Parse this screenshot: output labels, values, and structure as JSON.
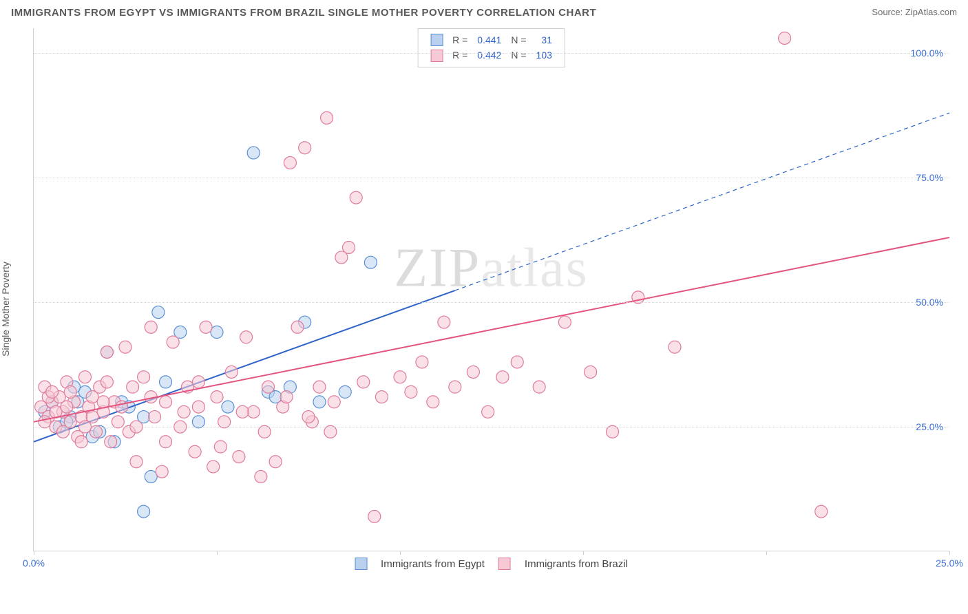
{
  "header": {
    "title": "IMMIGRANTS FROM EGYPT VS IMMIGRANTS FROM BRAZIL SINGLE MOTHER POVERTY CORRELATION CHART",
    "source_label": "Source:",
    "source_name": "ZipAtlas.com"
  },
  "chart": {
    "type": "scatter",
    "ylabel": "Single Mother Poverty",
    "watermark": "ZIPatlas",
    "background_color": "#ffffff",
    "grid_color": "#d8d8d8",
    "axis_color": "#cfcfcf",
    "xlim": [
      0,
      25
    ],
    "ylim": [
      0,
      105
    ],
    "xticks": [
      0,
      5,
      10,
      15,
      20,
      25
    ],
    "xtick_labels": [
      "0.0%",
      "",
      "",
      "",
      "",
      "25.0%"
    ],
    "yticks": [
      25,
      50,
      75,
      100
    ],
    "ytick_labels": [
      "25.0%",
      "50.0%",
      "75.0%",
      "100.0%"
    ],
    "ytick_color": "#3b6fd4",
    "xtick_color": "#3b6fd4",
    "marker_radius": 9,
    "marker_opacity": 0.55,
    "series": [
      {
        "name": "Immigrants from Egypt",
        "color_fill": "#b9d1ee",
        "color_stroke": "#5a8fd6",
        "R": "0.441",
        "N": "31",
        "trend": {
          "x1": 0,
          "y1": 22,
          "x2": 25,
          "y2": 88,
          "solid_until_x": 11.5,
          "stroke": "#2e64c9",
          "width": 2
        },
        "points": [
          [
            0.3,
            28
          ],
          [
            0.5,
            30
          ],
          [
            0.7,
            25
          ],
          [
            1.0,
            27
          ],
          [
            1.2,
            30
          ],
          [
            1.4,
            32
          ],
          [
            1.6,
            23
          ],
          [
            1.8,
            24
          ],
          [
            2.0,
            40
          ],
          [
            2.2,
            22
          ],
          [
            2.4,
            30
          ],
          [
            2.6,
            29
          ],
          [
            3.0,
            8
          ],
          [
            3.2,
            15
          ],
          [
            3.4,
            48
          ],
          [
            3.6,
            34
          ],
          [
            4.0,
            44
          ],
          [
            4.5,
            26
          ],
          [
            5.0,
            44
          ],
          [
            5.3,
            29
          ],
          [
            6.0,
            80
          ],
          [
            6.4,
            32
          ],
          [
            6.6,
            31
          ],
          [
            7.0,
            33
          ],
          [
            7.4,
            46
          ],
          [
            7.8,
            30
          ],
          [
            8.5,
            32
          ],
          [
            9.2,
            58
          ],
          [
            3.0,
            27
          ],
          [
            1.1,
            33
          ],
          [
            0.9,
            26
          ]
        ]
      },
      {
        "name": "Immigrants from Brazil",
        "color_fill": "#f6c9d4",
        "color_stroke": "#e07a9a",
        "R": "0.442",
        "N": "103",
        "trend": {
          "x1": 0,
          "y1": 26,
          "x2": 25,
          "y2": 63,
          "stroke": "#e3547e",
          "width": 2
        },
        "points": [
          [
            0.2,
            29
          ],
          [
            0.3,
            33
          ],
          [
            0.4,
            27
          ],
          [
            0.5,
            30
          ],
          [
            0.6,
            25
          ],
          [
            0.7,
            31
          ],
          [
            0.8,
            28
          ],
          [
            0.9,
            34
          ],
          [
            1.0,
            26
          ],
          [
            1.1,
            30
          ],
          [
            1.2,
            23
          ],
          [
            1.3,
            27
          ],
          [
            1.4,
            35
          ],
          [
            1.5,
            29
          ],
          [
            1.6,
            31
          ],
          [
            1.7,
            24
          ],
          [
            1.8,
            33
          ],
          [
            1.9,
            28
          ],
          [
            2.0,
            40
          ],
          [
            2.1,
            22
          ],
          [
            2.2,
            30
          ],
          [
            2.3,
            26
          ],
          [
            2.5,
            41
          ],
          [
            2.6,
            24
          ],
          [
            2.7,
            33
          ],
          [
            2.8,
            18
          ],
          [
            3.0,
            35
          ],
          [
            3.2,
            45
          ],
          [
            3.3,
            27
          ],
          [
            3.5,
            16
          ],
          [
            3.6,
            30
          ],
          [
            3.8,
            42
          ],
          [
            4.0,
            25
          ],
          [
            4.2,
            33
          ],
          [
            4.4,
            20
          ],
          [
            4.5,
            29
          ],
          [
            4.7,
            45
          ],
          [
            4.9,
            17
          ],
          [
            5.0,
            31
          ],
          [
            5.2,
            26
          ],
          [
            5.4,
            36
          ],
          [
            5.6,
            19
          ],
          [
            5.8,
            43
          ],
          [
            6.0,
            28
          ],
          [
            6.2,
            15
          ],
          [
            6.4,
            33
          ],
          [
            6.6,
            18
          ],
          [
            6.8,
            29
          ],
          [
            7.0,
            78
          ],
          [
            7.2,
            45
          ],
          [
            7.4,
            81
          ],
          [
            7.6,
            26
          ],
          [
            7.8,
            33
          ],
          [
            8.0,
            87
          ],
          [
            8.2,
            30
          ],
          [
            8.4,
            59
          ],
          [
            8.6,
            61
          ],
          [
            8.8,
            71
          ],
          [
            9.0,
            34
          ],
          [
            9.3,
            7
          ],
          [
            9.5,
            31
          ],
          [
            10.0,
            35
          ],
          [
            10.3,
            32
          ],
          [
            10.6,
            38
          ],
          [
            10.9,
            30
          ],
          [
            11.2,
            46
          ],
          [
            11.5,
            33
          ],
          [
            12.0,
            36
          ],
          [
            12.4,
            28
          ],
          [
            12.8,
            35
          ],
          [
            13.2,
            38
          ],
          [
            13.8,
            33
          ],
          [
            14.5,
            46
          ],
          [
            15.2,
            36
          ],
          [
            15.8,
            24
          ],
          [
            16.5,
            51
          ],
          [
            17.5,
            41
          ],
          [
            20.5,
            103
          ],
          [
            21.5,
            8
          ],
          [
            0.4,
            31
          ],
          [
            0.6,
            28
          ],
          [
            0.8,
            24
          ],
          [
            1.0,
            32
          ],
          [
            1.3,
            22
          ],
          [
            1.6,
            27
          ],
          [
            2.0,
            34
          ],
          [
            2.4,
            29
          ],
          [
            2.8,
            25
          ],
          [
            3.2,
            31
          ],
          [
            3.6,
            22
          ],
          [
            4.1,
            28
          ],
          [
            4.5,
            34
          ],
          [
            5.1,
            21
          ],
          [
            5.7,
            28
          ],
          [
            6.3,
            24
          ],
          [
            6.9,
            31
          ],
          [
            7.5,
            27
          ],
          [
            8.1,
            24
          ],
          [
            0.3,
            26
          ],
          [
            0.5,
            32
          ],
          [
            0.9,
            29
          ],
          [
            1.4,
            25
          ],
          [
            1.9,
            30
          ]
        ]
      }
    ],
    "legend_top": {
      "R_label": "R =",
      "N_label": "N =",
      "value_color": "#2e64c9"
    },
    "legend_bottom": {
      "items": [
        "Immigrants from Egypt",
        "Immigrants from Brazil"
      ]
    }
  }
}
